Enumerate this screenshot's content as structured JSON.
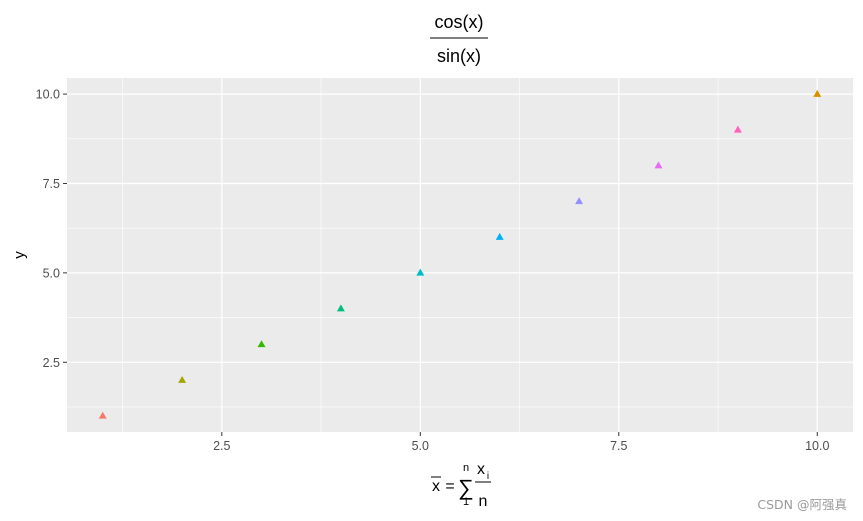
{
  "chart_data": {
    "type": "scatter",
    "marker": "triangle",
    "title": {
      "numerator": "cos(x)",
      "denominator": "sin(x)"
    },
    "xlabel": {
      "lhs": "x",
      "equals": "=",
      "sum_symbol": "∑",
      "sum_upper": "n",
      "sum_lower": "1",
      "frac_numerator": "x",
      "frac_numerator_subscript": "i",
      "frac_denominator": "n"
    },
    "ylabel": "y",
    "xlim": [
      0.55,
      10.45
    ],
    "ylim": [
      0.55,
      10.45
    ],
    "x_ticks": [
      2.5,
      5.0,
      7.5,
      10.0
    ],
    "x_tick_labels": [
      "2.5",
      "5.0",
      "7.5",
      "10.0"
    ],
    "y_ticks": [
      2.5,
      5.0,
      7.5,
      10.0
    ],
    "y_tick_labels": [
      "2.5",
      "5.0",
      "7.5",
      "10.0"
    ],
    "grid": true,
    "legend": "none",
    "panel_background": "#ebebeb",
    "grid_color": "#ffffff",
    "points": [
      {
        "x": 1,
        "y": 1,
        "color": "#f8766d"
      },
      {
        "x": 2,
        "y": 2,
        "color": "#a3a500"
      },
      {
        "x": 3,
        "y": 3,
        "color": "#39b600"
      },
      {
        "x": 4,
        "y": 4,
        "color": "#00bf7d"
      },
      {
        "x": 5,
        "y": 5,
        "color": "#00bfc4"
      },
      {
        "x": 6,
        "y": 6,
        "color": "#00b0f6"
      },
      {
        "x": 7,
        "y": 7,
        "color": "#9590ff"
      },
      {
        "x": 8,
        "y": 8,
        "color": "#e76bf3"
      },
      {
        "x": 9,
        "y": 9,
        "color": "#ff62bc"
      },
      {
        "x": 10,
        "y": 10,
        "color": "#d89000"
      }
    ]
  },
  "watermark": "CSDN @阿强真"
}
